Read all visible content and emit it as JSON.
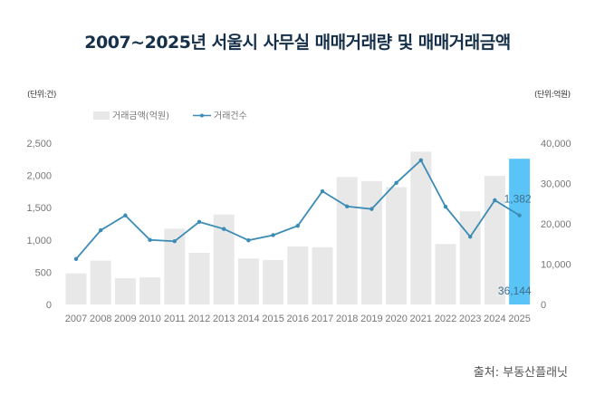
{
  "chart_data": {
    "type": "bar",
    "title": "2007~2025년 서울시 사무실 매매거래량 및 매매거래금액",
    "left_unit": "(단위:건)",
    "right_unit": "(단위:억원)",
    "source": "출처: 부동산플래닛",
    "categories": [
      "2007",
      "2008",
      "2009",
      "2010",
      "2011",
      "2012",
      "2013",
      "2014",
      "2015",
      "2016",
      "2017",
      "2018",
      "2019",
      "2020",
      "2021",
      "2022",
      "2023",
      "2024",
      "2025"
    ],
    "series": [
      {
        "name": "거래금액(억원)",
        "type": "bar",
        "axis": "right",
        "values": [
          7700,
          10900,
          6500,
          6700,
          18800,
          12800,
          22300,
          11400,
          11000,
          14400,
          14200,
          31600,
          30600,
          29100,
          37900,
          15000,
          23100,
          31900,
          36144
        ]
      },
      {
        "name": "거래건수",
        "type": "line",
        "axis": "left",
        "values": [
          705,
          1150,
          1380,
          1000,
          980,
          1280,
          1170,
          995,
          1075,
          1220,
          1755,
          1520,
          1480,
          1885,
          2235,
          1515,
          1050,
          1615,
          1382
        ]
      }
    ],
    "left_axis": {
      "ylim": [
        0,
        2500
      ],
      "ticks": [
        "0",
        "500",
        "1,000",
        "1,500",
        "2,000",
        "2,500"
      ]
    },
    "right_axis": {
      "ylim": [
        0,
        40000
      ],
      "ticks": [
        "0",
        "10,000",
        "20,000",
        "30,000",
        "40,000"
      ]
    },
    "data_labels": {
      "line_last": "1,382",
      "bar_last": "36,144"
    },
    "colors": {
      "bar": "#e8e8e8",
      "highlight_bar": "#5bc4f7",
      "line": "#3b8cb5",
      "title": "#16304a"
    },
    "legend": "top-left"
  }
}
